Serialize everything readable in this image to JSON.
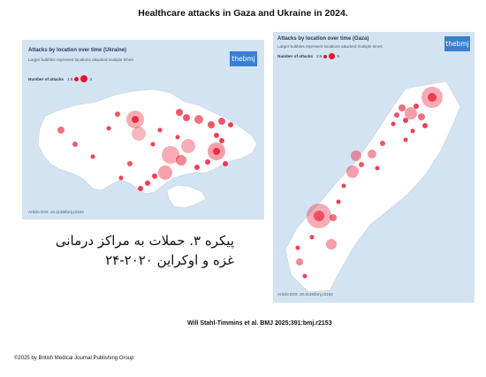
{
  "title": "Healthcare attacks in Gaza and Ukraine in 2024.",
  "ukraine": {
    "panel_title": "Attacks by location over time (Ukraine)",
    "subtitle": "Larger bubbles represent locations attacked multiple times",
    "legend_label": "Number of attacks",
    "legend_min": "1.5",
    "legend_max": "3",
    "logo": "thebmj",
    "doi": "Article DOI: 10.1136/bmj.r2153"
  },
  "gaza": {
    "panel_title": "Attacks by location over time (Gaza)",
    "subtitle": "Larger bubbles represent locations attacked multiple times",
    "legend_label": "Number of attacks",
    "legend_min": "2.5",
    "legend_max": "5",
    "logo": "thebmj",
    "doi": "Article DOI: 10.1136/bmj.r2153"
  },
  "persian_caption": {
    "line1": "پیکره ۳. حملات به مراکز درمانی",
    "line2": "غزه و اوکراین ۲۰۲۰-۲۴"
  },
  "citation": "Will Stahl-Timmins et al. BMJ 2025;391:bmj.r2153",
  "copyright": "©2025 by British Medical Journal Publishing Group",
  "colors": {
    "panel_bg": "#d3e3f1",
    "land": "#ffffff",
    "attack_marker": "#e8102a",
    "logo_bg": "#3a7fd0"
  }
}
